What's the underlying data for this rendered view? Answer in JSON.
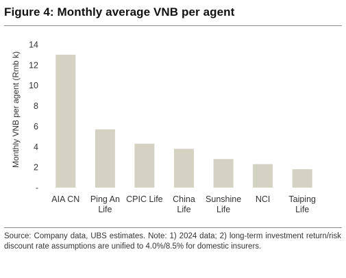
{
  "figure": {
    "title": "Figure 4: Monthly average VNB per agent",
    "source": "Source: Company data, UBS estimates. Note: 1) 2024 data; 2) long-term investment return/risk discount rate assumptions are unified to 4.0%/8.5% for domestic insurers."
  },
  "chart_data": {
    "type": "bar",
    "title": "",
    "xlabel": "",
    "ylabel": "Monthly VNB per agent (Rmb k)",
    "ylim": [
      0,
      14
    ],
    "yticks": [
      0,
      2,
      4,
      6,
      8,
      10,
      12,
      14
    ],
    "ytick_labels": [
      "-",
      "2",
      "4",
      "6",
      "8",
      "10",
      "12",
      "14"
    ],
    "categories": [
      [
        "AIA CN"
      ],
      [
        "Ping An",
        "Life"
      ],
      [
        "CPIC Life"
      ],
      [
        "China",
        "Life"
      ],
      [
        "Sunshine",
        "Life"
      ],
      [
        "NCI"
      ],
      [
        "Taiping",
        "Life"
      ]
    ],
    "values": [
      13.0,
      5.7,
      4.3,
      3.8,
      2.8,
      2.3,
      1.8
    ],
    "bar_color": "#d4d2c2",
    "grid": false,
    "legend": "none"
  }
}
